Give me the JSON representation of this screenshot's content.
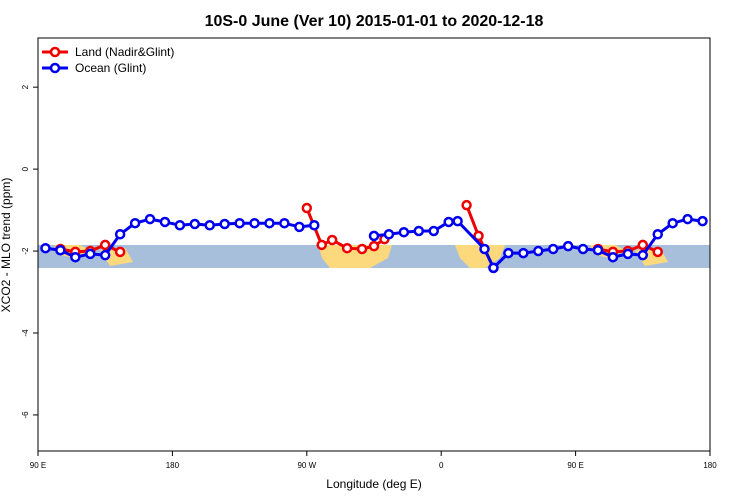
{
  "chart_data": {
    "type": "line",
    "title": "10S-0 June (Ver 10)   2015-01-01 to 2020-12-18",
    "x_label": "Longitude (deg E)",
    "y_label": "XCO2 - MLO trend (ppm)",
    "xlim": [
      90,
      540
    ],
    "xticks": [
      {
        "value": 90,
        "label": "90 E"
      },
      180,
      {
        "value": 270,
        "label": "90 W"
      },
      {
        "value": 360,
        "label": "0"
      },
      {
        "value": 450,
        "label": "90 E"
      },
      {
        "value": 540,
        "label": "180"
      }
    ],
    "ylim": [
      -6.88,
      3.2
    ],
    "yticks": [
      -6,
      -4,
      -2,
      0,
      2
    ],
    "legend": "top-left",
    "series": [
      {
        "name": "Land (Nadir&Glint)",
        "color": "#ee0000",
        "x": [
          105,
          115,
          125,
          135,
          145,
          null,
          270,
          280,
          287,
          297,
          307,
          315,
          322,
          null,
          377,
          385,
          395,
          null,
          465,
          475,
          485,
          495,
          505
        ],
        "values": [
          -1.95,
          -2.02,
          -2.0,
          -1.85,
          -2.02,
          null,
          -0.95,
          -1.85,
          -1.73,
          -1.93,
          -1.95,
          -1.88,
          -1.71,
          null,
          -0.88,
          -1.63,
          -2.41,
          null,
          -1.95,
          -2.02,
          -2.0,
          -1.85,
          -2.02
        ]
      },
      {
        "name": "Ocean (Glint)",
        "color": "#0000ee",
        "x": [
          95,
          105,
          115,
          125,
          135,
          145,
          155,
          165,
          175,
          185,
          195,
          205,
          215,
          225,
          235,
          245,
          255,
          265,
          275,
          null,
          315,
          325,
          335,
          345,
          355,
          365,
          371,
          389,
          395,
          405,
          415,
          425,
          435,
          445,
          455,
          465,
          475,
          485,
          495,
          505,
          515,
          525,
          535
        ],
        "values": [
          -1.93,
          -1.98,
          -2.15,
          -2.07,
          -2.1,
          -1.59,
          -1.32,
          -1.22,
          -1.29,
          -1.37,
          -1.34,
          -1.37,
          -1.34,
          -1.32,
          -1.32,
          -1.32,
          -1.32,
          -1.41,
          -1.37,
          null,
          -1.63,
          -1.59,
          -1.54,
          -1.51,
          -1.51,
          -1.29,
          -1.27,
          -1.95,
          -2.41,
          -2.05,
          -2.05,
          -2.0,
          -1.95,
          -1.88,
          -1.95,
          -1.98,
          -2.15,
          -2.07,
          -2.1,
          -1.59,
          -1.32,
          -1.22,
          -1.27
        ]
      }
    ]
  }
}
